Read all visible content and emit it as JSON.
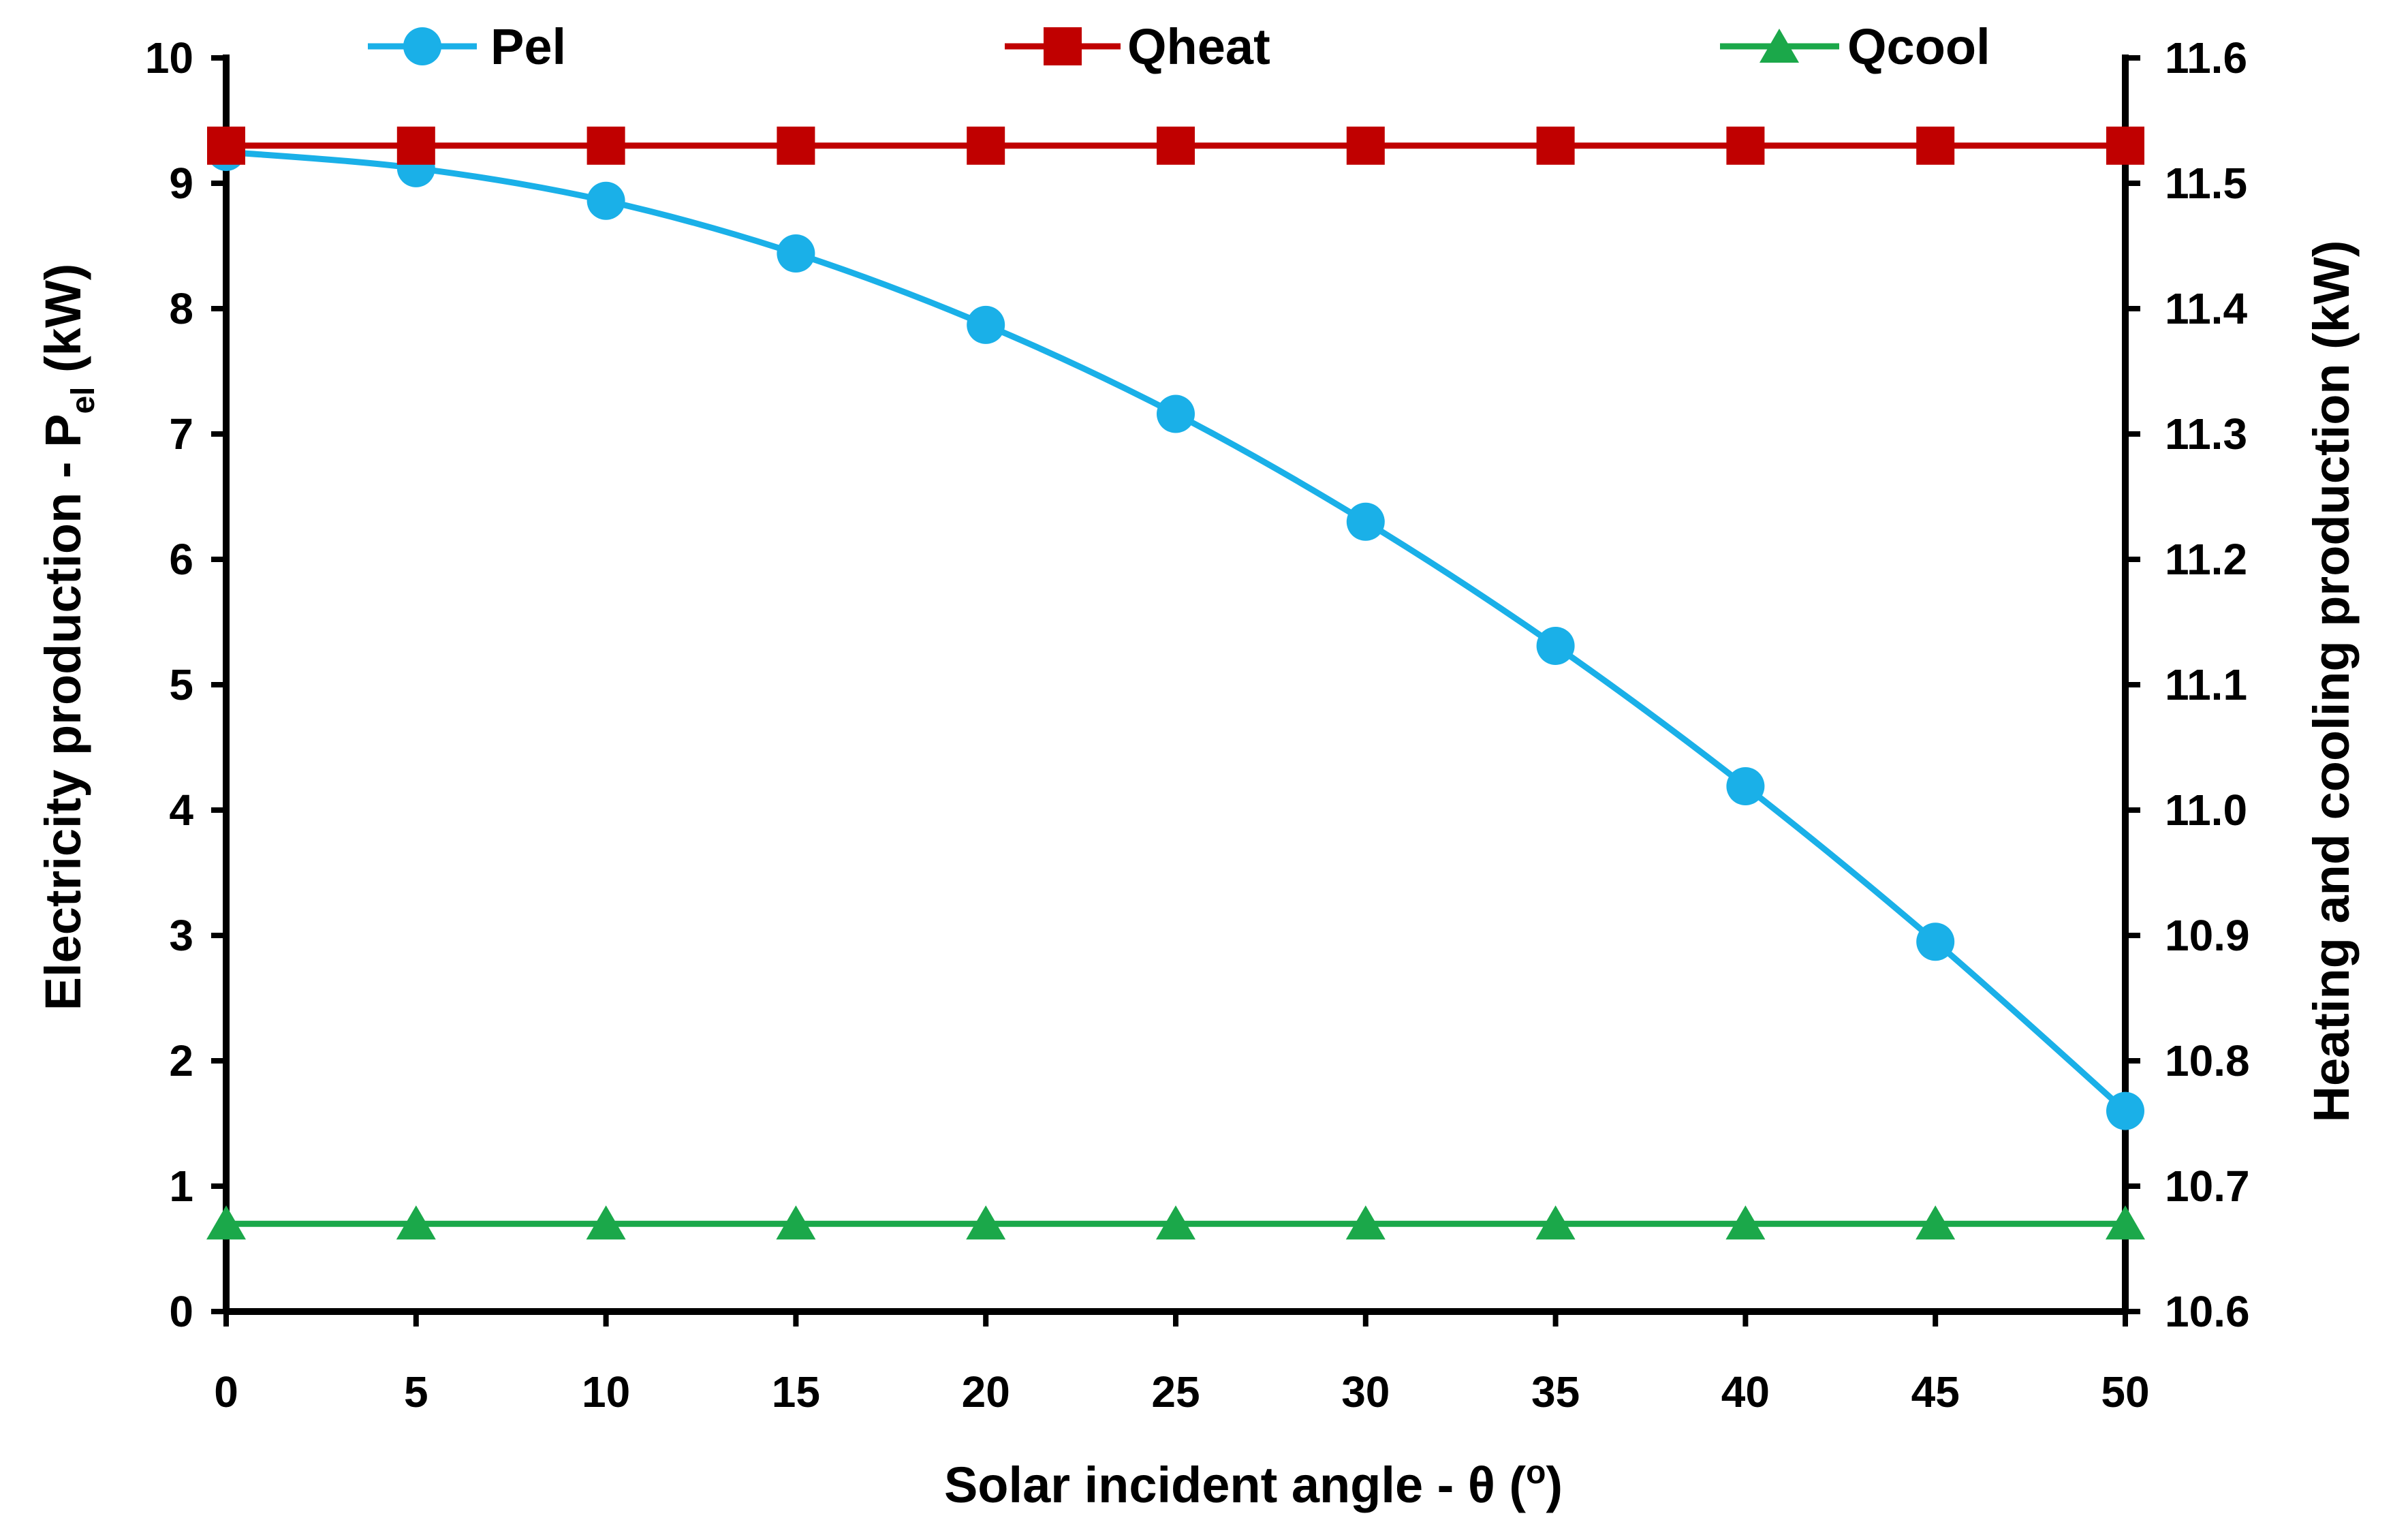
{
  "chart_data": {
    "type": "line",
    "x": [
      0,
      5,
      10,
      15,
      20,
      25,
      30,
      35,
      40,
      45,
      50
    ],
    "xlim": [
      0,
      50
    ],
    "xticks": [
      "0",
      "5",
      "10",
      "15",
      "20",
      "25",
      "30",
      "35",
      "40",
      "45",
      "50"
    ],
    "xlabel": "Solar incident angle - θ (",
    "xlabel_super": "o",
    "xlabel_tail": ")",
    "ylim_left": [
      0,
      10
    ],
    "yticks_left": [
      "0",
      "1",
      "2",
      "3",
      "4",
      "5",
      "6",
      "7",
      "8",
      "9",
      "10"
    ],
    "ylabel_left": "Electricity production - P",
    "ylabel_left_sub": "el",
    "ylabel_left_tail": " (kW)",
    "ylim_right": [
      10.6,
      11.6
    ],
    "yticks_right": [
      "10.6",
      "10.7",
      "10.8",
      "10.9",
      "11.0",
      "11.1",
      "11.2",
      "11.3",
      "11.4",
      "11.5",
      "11.6"
    ],
    "ylabel_right": "Heating and cooling production (kW)",
    "grid": false,
    "series": [
      {
        "name": "Pel",
        "axis": "left",
        "color": "#1AB0E8",
        "marker": "circle",
        "values": [
          9.25,
          9.12,
          8.86,
          8.44,
          7.87,
          7.16,
          6.3,
          5.31,
          4.19,
          2.95,
          1.6
        ]
      },
      {
        "name": "Qheat",
        "axis": "right",
        "color": "#C00000",
        "marker": "square",
        "values": [
          11.53,
          11.53,
          11.53,
          11.53,
          11.53,
          11.53,
          11.53,
          11.53,
          11.53,
          11.53,
          11.53
        ]
      },
      {
        "name": "Qcool",
        "axis": "right",
        "color": "#1BA84A",
        "marker": "triangle",
        "values": [
          10.67,
          10.67,
          10.67,
          10.67,
          10.67,
          10.67,
          10.67,
          10.67,
          10.67,
          10.67,
          10.67
        ]
      }
    ]
  }
}
